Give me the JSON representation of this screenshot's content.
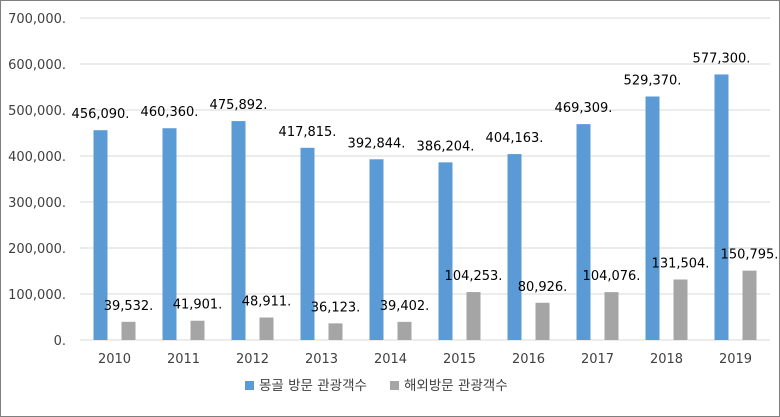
{
  "chart_data": {
    "type": "bar",
    "categories": [
      "2010",
      "2011",
      "2012",
      "2013",
      "2014",
      "2015",
      "2016",
      "2017",
      "2018",
      "2019"
    ],
    "series": [
      {
        "name": "몽골 방문 관광객수",
        "color": "#5b9bd5",
        "values": [
          456090,
          460360,
          475892,
          417815,
          392844,
          386204,
          404163,
          469309,
          529370,
          577300
        ],
        "labels": [
          "456,090.",
          "460,360.",
          "475,892.",
          "417,815.",
          "392,844.",
          "386,204.",
          "404,163.",
          "469,309.",
          "529,370.",
          "577,300."
        ]
      },
      {
        "name": "해외방문 관광객수",
        "color": "#a5a5a5",
        "values": [
          39532,
          41901,
          48911,
          36123,
          39402,
          104253,
          80926,
          104076,
          131504,
          150795
        ],
        "labels": [
          "39,532.",
          "41,901.",
          "48,911.",
          "36,123.",
          "39,402.",
          "104,253.",
          "80,926.",
          "104,076.",
          "131,504.",
          "150,795."
        ]
      }
    ],
    "ylim": [
      0,
      700000
    ],
    "yticks": [
      0,
      100000,
      200000,
      300000,
      400000,
      500000,
      600000,
      700000
    ],
    "ytick_labels": [
      "0.",
      "100,000.",
      "200,000.",
      "300,000.",
      "400,000.",
      "500,000.",
      "600,000.",
      "700,000."
    ],
    "grid": true,
    "legend_position": "bottom",
    "title": "",
    "xlabel": "",
    "ylabel": ""
  }
}
